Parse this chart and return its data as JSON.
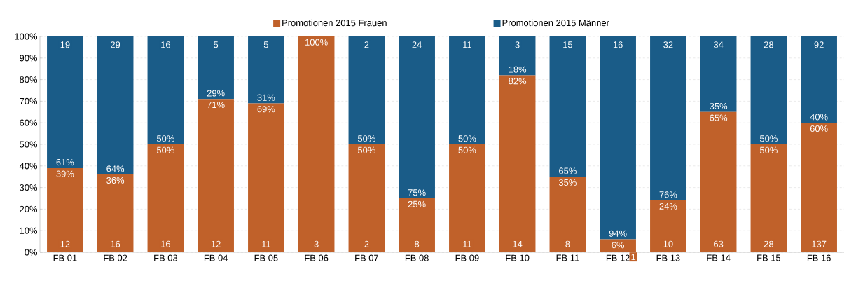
{
  "chart_data": {
    "type": "bar",
    "stacked": true,
    "categories": [
      "FB 01",
      "FB 02",
      "FB 03",
      "FB 04",
      "FB 05",
      "FB 06",
      "FB 07",
      "FB 08",
      "FB 09",
      "FB 10",
      "FB 11",
      "FB 12",
      "FB 13",
      "FB 14",
      "FB 15",
      "FB 16"
    ],
    "series": [
      {
        "name": "Promotionen 2015 Frauen",
        "color": "#c0612a",
        "values": [
          39,
          36,
          50,
          71,
          69,
          100,
          50,
          25,
          50,
          82,
          35,
          6,
          24,
          65,
          50,
          60
        ],
        "value_labels": [
          "39%",
          "36%",
          "50%",
          "71%",
          "69%",
          "100%",
          "50%",
          "25%",
          "50%",
          "82%",
          "35%",
          "6%",
          "24%",
          "65%",
          "50%",
          "60%"
        ]
      },
      {
        "name": "Promotionen 2015 Männer",
        "color": "#1a5c88",
        "values": [
          61,
          64,
          50,
          29,
          31,
          0,
          50,
          75,
          50,
          18,
          65,
          94,
          76,
          35,
          50,
          40
        ],
        "value_labels": [
          "61%",
          "64%",
          "50%",
          "29%",
          "31%",
          null,
          "50%",
          "75%",
          "50%",
          "18%",
          "65%",
          "94%",
          "76%",
          "35%",
          "50%",
          "40%"
        ]
      }
    ],
    "ylim": [
      0,
      100
    ],
    "yticks": [
      {
        "value": 0,
        "label": "0%"
      },
      {
        "value": 10,
        "label": "10%"
      },
      {
        "value": 20,
        "label": "20%"
      },
      {
        "value": 30,
        "label": "30%"
      },
      {
        "value": 40,
        "label": "40%"
      },
      {
        "value": 50,
        "label": "50%"
      },
      {
        "value": 60,
        "label": "60%"
      },
      {
        "value": 70,
        "label": "70%"
      },
      {
        "value": 80,
        "label": "80%"
      },
      {
        "value": 90,
        "label": "90%"
      },
      {
        "value": 100,
        "label": "100%"
      }
    ],
    "grid": "y",
    "legend": "top",
    "annotations": [
      {
        "text": "12",
        "x": "FB 01",
        "y": 0
      },
      {
        "text": "16",
        "x": "FB 02",
        "y": 0
      },
      {
        "text": "16",
        "x": "FB 03",
        "y": 0
      },
      {
        "text": "12",
        "x": "FB 04",
        "y": 0
      },
      {
        "text": "11",
        "x": "FB 05",
        "y": 0
      },
      {
        "text": "3",
        "x": "FB 06",
        "y": 0
      },
      {
        "text": "2",
        "x": "FB 07",
        "y": 0
      },
      {
        "text": "8",
        "x": "FB 08",
        "y": 0
      },
      {
        "text": "11",
        "x": "FB 09",
        "y": 0
      },
      {
        "text": "14",
        "x": "FB 10",
        "y": 0
      },
      {
        "text": "8",
        "x": "FB 11",
        "y": 0
      },
      {
        "text": "1",
        "x": "FB 12",
        "y": 0
      },
      {
        "text": "10",
        "x": "FB 13",
        "y": 0
      },
      {
        "text": "63",
        "x": "FB 14",
        "y": 0
      },
      {
        "text": "28",
        "x": "FB 15",
        "y": 0
      },
      {
        "text": "137",
        "x": "FB 16",
        "y": 0
      },
      {
        "text": "19",
        "x": "FB 01",
        "y": 100
      },
      {
        "text": "29",
        "x": "FB 02",
        "y": 100
      },
      {
        "text": "16",
        "x": "FB 03",
        "y": 100
      },
      {
        "text": "5",
        "x": "FB 04",
        "y": 100
      },
      {
        "text": "5",
        "x": "FB 05",
        "y": 100
      },
      {
        "text": "2",
        "x": "FB 07",
        "y": 100
      },
      {
        "text": "24",
        "x": "FB 08",
        "y": 100
      },
      {
        "text": "11",
        "x": "FB 09",
        "y": 100
      },
      {
        "text": "3",
        "x": "FB 10",
        "y": 100
      },
      {
        "text": "15",
        "x": "FB 11",
        "y": 100
      },
      {
        "text": "16",
        "x": "FB 12",
        "y": 100
      },
      {
        "text": "32",
        "x": "FB 13",
        "y": 100
      },
      {
        "text": "34",
        "x": "FB 14",
        "y": 100
      },
      {
        "text": "28",
        "x": "FB 15",
        "y": 100
      },
      {
        "text": "92",
        "x": "FB 16",
        "y": 100
      }
    ]
  }
}
